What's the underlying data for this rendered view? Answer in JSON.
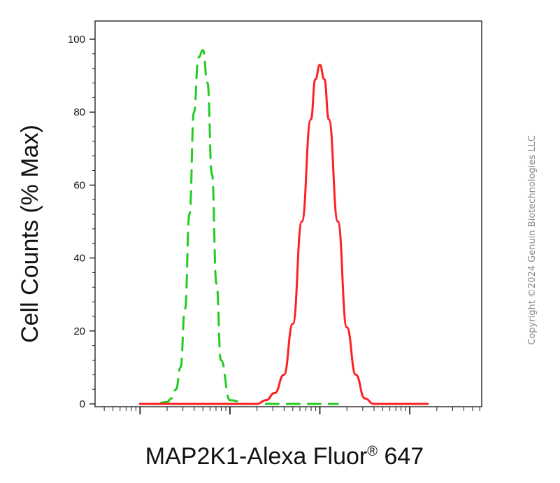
{
  "chart_data": {
    "type": "line",
    "title": "",
    "xlabel": "MAP2K1-Alexa Fluor",
    "xlabel_superscript": "®",
    "xlabel_suffix": " 647",
    "ylabel": "Cell Counts (% Max)",
    "ylim": [
      0,
      100
    ],
    "yticks": [
      "0",
      "20",
      "40",
      "60",
      "80",
      "100"
    ],
    "xscale": "log",
    "grid": false,
    "legend": "none",
    "series": [
      {
        "style": "dashed",
        "color": "#22cc22",
        "x": [
          3.0,
          3.15,
          3.3,
          3.35,
          3.4,
          3.45,
          3.5,
          3.55,
          3.6,
          3.65,
          3.7,
          3.75,
          3.8,
          3.85,
          3.9,
          4.0,
          4.2,
          4.5,
          4.7,
          4.9,
          5.2
        ],
        "y": [
          0,
          0,
          0.5,
          1.5,
          4,
          10,
          26,
          52,
          80,
          95,
          97,
          88,
          63,
          33,
          12,
          1,
          0,
          0,
          0,
          0,
          0
        ]
      },
      {
        "style": "solid",
        "color": "#ff2020",
        "x": [
          3.0,
          4.0,
          4.3,
          4.4,
          4.5,
          4.6,
          4.7,
          4.8,
          4.9,
          4.95,
          5.0,
          5.05,
          5.1,
          5.2,
          5.3,
          5.4,
          5.5,
          5.6,
          5.8,
          6.0,
          6.2
        ],
        "y": [
          0,
          0,
          0,
          1,
          3,
          8,
          22,
          50,
          78,
          89,
          93,
          89,
          78,
          50,
          21,
          8,
          1.5,
          0,
          0,
          0,
          0
        ]
      }
    ]
  },
  "watermark": "Copyright ©2024 Genuin Biotechnologies LLC",
  "colors": {
    "axis": "#222222",
    "green_series": "#22cc22",
    "red_series": "#ff2020"
  }
}
